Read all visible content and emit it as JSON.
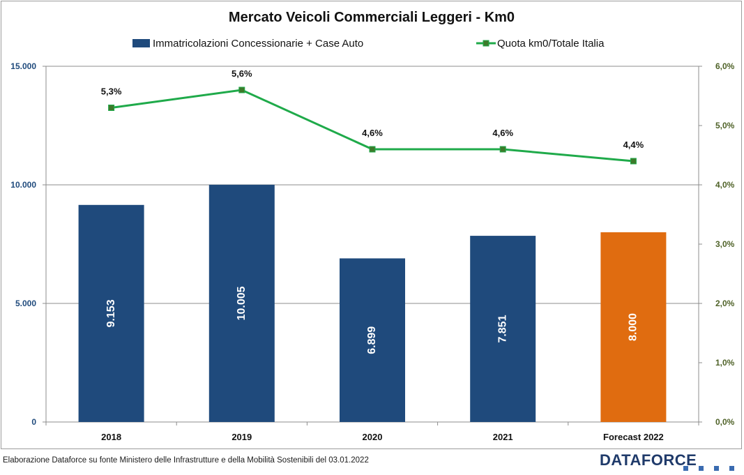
{
  "chart_data": {
    "type": "bar",
    "title": "Mercato Veicoli Commerciali Leggeri - Km0",
    "categories": [
      "2018",
      "2019",
      "2020",
      "2021",
      "Forecast 2022"
    ],
    "series": [
      {
        "name": "Immatricolazioni Concessionarie + Case Auto",
        "type": "bar",
        "axis": "left",
        "values": [
          9153,
          10005,
          6899,
          7851,
          8000
        ],
        "value_labels": [
          "9.153",
          "10.005",
          "6.899",
          "7.851",
          "8.000"
        ],
        "colors": [
          "#1f4a7c",
          "#1f4a7c",
          "#1f4a7c",
          "#1f4a7c",
          "#e06c10"
        ]
      },
      {
        "name": "Quota km0/Totale Italia",
        "type": "line",
        "axis": "right",
        "values": [
          5.3,
          5.6,
          4.6,
          4.6,
          4.4
        ],
        "value_labels": [
          "5,3%",
          "5,6%",
          "4,6%",
          "4,6%",
          "4,4%"
        ],
        "color": "#1faa4a",
        "marker_color": "#3d7a2a"
      }
    ],
    "y_left": {
      "range": [
        0,
        15000
      ],
      "ticks": [
        0,
        5000,
        10000,
        15000
      ],
      "tick_labels": [
        "0",
        "5.000",
        "10.000",
        "15.000"
      ],
      "color": "#1f4a7c"
    },
    "y_right": {
      "range": [
        0,
        6
      ],
      "ticks": [
        0,
        1,
        2,
        3,
        4,
        5,
        6
      ],
      "tick_labels": [
        "0,0%",
        "1,0%",
        "2,0%",
        "3,0%",
        "4,0%",
        "5,0%",
        "6,0%"
      ],
      "color": "#4f6228"
    },
    "grid": true,
    "legend_position": "top"
  },
  "footer": {
    "source_note": "Elaborazione Dataforce su fonte Ministero delle Infrastrutture e della Mobilità Sostenibili del 03.01.2022",
    "brand": "DATAFORCE"
  }
}
